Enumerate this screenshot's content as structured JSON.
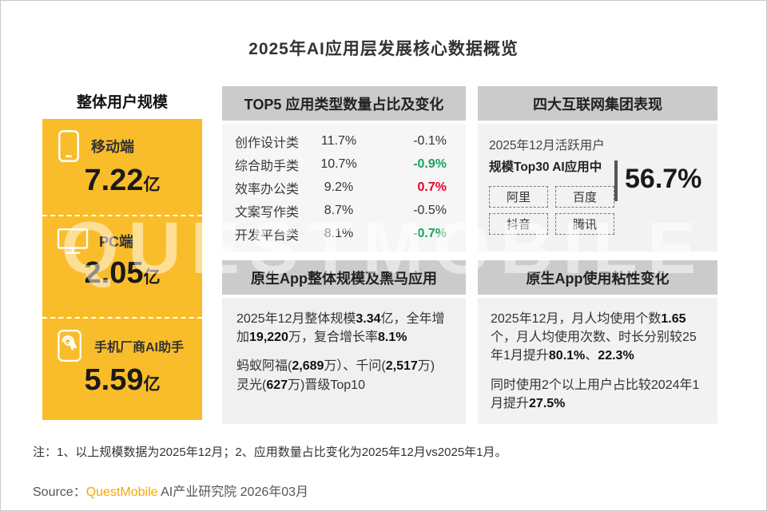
{
  "title": "2025年AI应用层发展核心数据概览",
  "watermark": "QUESTMOBILE",
  "colors": {
    "accent_yellow": "#F9BD2B",
    "header_gray": "#CBCBCB",
    "body_gray": "#F2F2F2",
    "positive_red": "#E60023",
    "negative_green": "#17A35B",
    "brand_orange": "#F7A600"
  },
  "left_panel": {
    "header": "整体用户规模",
    "items": [
      {
        "icon": "mobile-icon",
        "label": "移动端",
        "value": "7.22",
        "unit": "亿"
      },
      {
        "icon": "monitor-icon",
        "label": "PC端",
        "value": "2.05",
        "unit": "亿"
      },
      {
        "icon": "phone-tap-icon",
        "label": "手机厂商AI助手",
        "value": "5.59",
        "unit": "亿"
      }
    ]
  },
  "top5_panel": {
    "header": "TOP5 应用类型数量占比及变化",
    "rows": [
      {
        "label": "创作设计类",
        "share": "11.7%",
        "change": "-0.1%",
        "color": "#333333",
        "bold": false
      },
      {
        "label": "综合助手类",
        "share": "10.7%",
        "change": "-0.9%",
        "color": "#17A35B",
        "bold": true
      },
      {
        "label": "效率办公类",
        "share": "9.2%",
        "change": "0.7%",
        "color": "#E60023",
        "bold": true
      },
      {
        "label": "文案写作类",
        "share": "8.7%",
        "change": "-0.5%",
        "color": "#333333",
        "bold": false
      },
      {
        "label": "开发平台类",
        "share": "8.1%",
        "change": "-0.7%",
        "color": "#17A35B",
        "bold": true
      }
    ]
  },
  "groups_panel": {
    "header": "四大互联网集团表现",
    "desc_line1": "2025年12月活跃用户",
    "desc_line2": "规模Top30 AI应用中",
    "tags": [
      "阿里",
      "百度",
      "抖音",
      "腾讯"
    ],
    "value": "56.7%"
  },
  "native_panel": {
    "header": "原生App整体规模及黑马应用",
    "paragraphs": [
      [
        {
          "t": "2025年12月整体规模"
        },
        {
          "t": "3.34",
          "b": true
        },
        {
          "t": "亿，全年增加"
        },
        {
          "t": "19,220",
          "b": true
        },
        {
          "t": "万，复合增长率"
        },
        {
          "t": "8.1%",
          "b": true
        }
      ],
      [
        {
          "t": "蚂蚁阿福("
        },
        {
          "t": "2,689",
          "b": true
        },
        {
          "t": "万）、千问("
        },
        {
          "t": "2,517",
          "b": true
        },
        {
          "t": "万)"
        },
        {
          "br": true
        },
        {
          "t": "灵光("
        },
        {
          "t": "627",
          "b": true
        },
        {
          "t": "万)晋级Top10"
        }
      ]
    ]
  },
  "sticky_panel": {
    "header": "原生App使用粘性变化",
    "paragraphs": [
      [
        {
          "t": "2025年12月，月人均使用个数"
        },
        {
          "t": "1.65",
          "b": true
        },
        {
          "t": "个，月人均使用次数、时长分别较25年1月提升"
        },
        {
          "t": "80.1%",
          "b": true
        },
        {
          "t": "、"
        },
        {
          "t": "22.3%",
          "b": true
        }
      ],
      [
        {
          "t": "同时使用2个以上用户占比较2024年1月提升"
        },
        {
          "t": "27.5%",
          "b": true
        }
      ]
    ]
  },
  "note": "注：1、以上规模数据为2025年12月；2、应用数量占比变化为2025年12月vs2025年1月。",
  "source": {
    "prefix": "Source：",
    "brand": "QuestMobile",
    "suffix": " AI产业研究院 2026年03月"
  }
}
